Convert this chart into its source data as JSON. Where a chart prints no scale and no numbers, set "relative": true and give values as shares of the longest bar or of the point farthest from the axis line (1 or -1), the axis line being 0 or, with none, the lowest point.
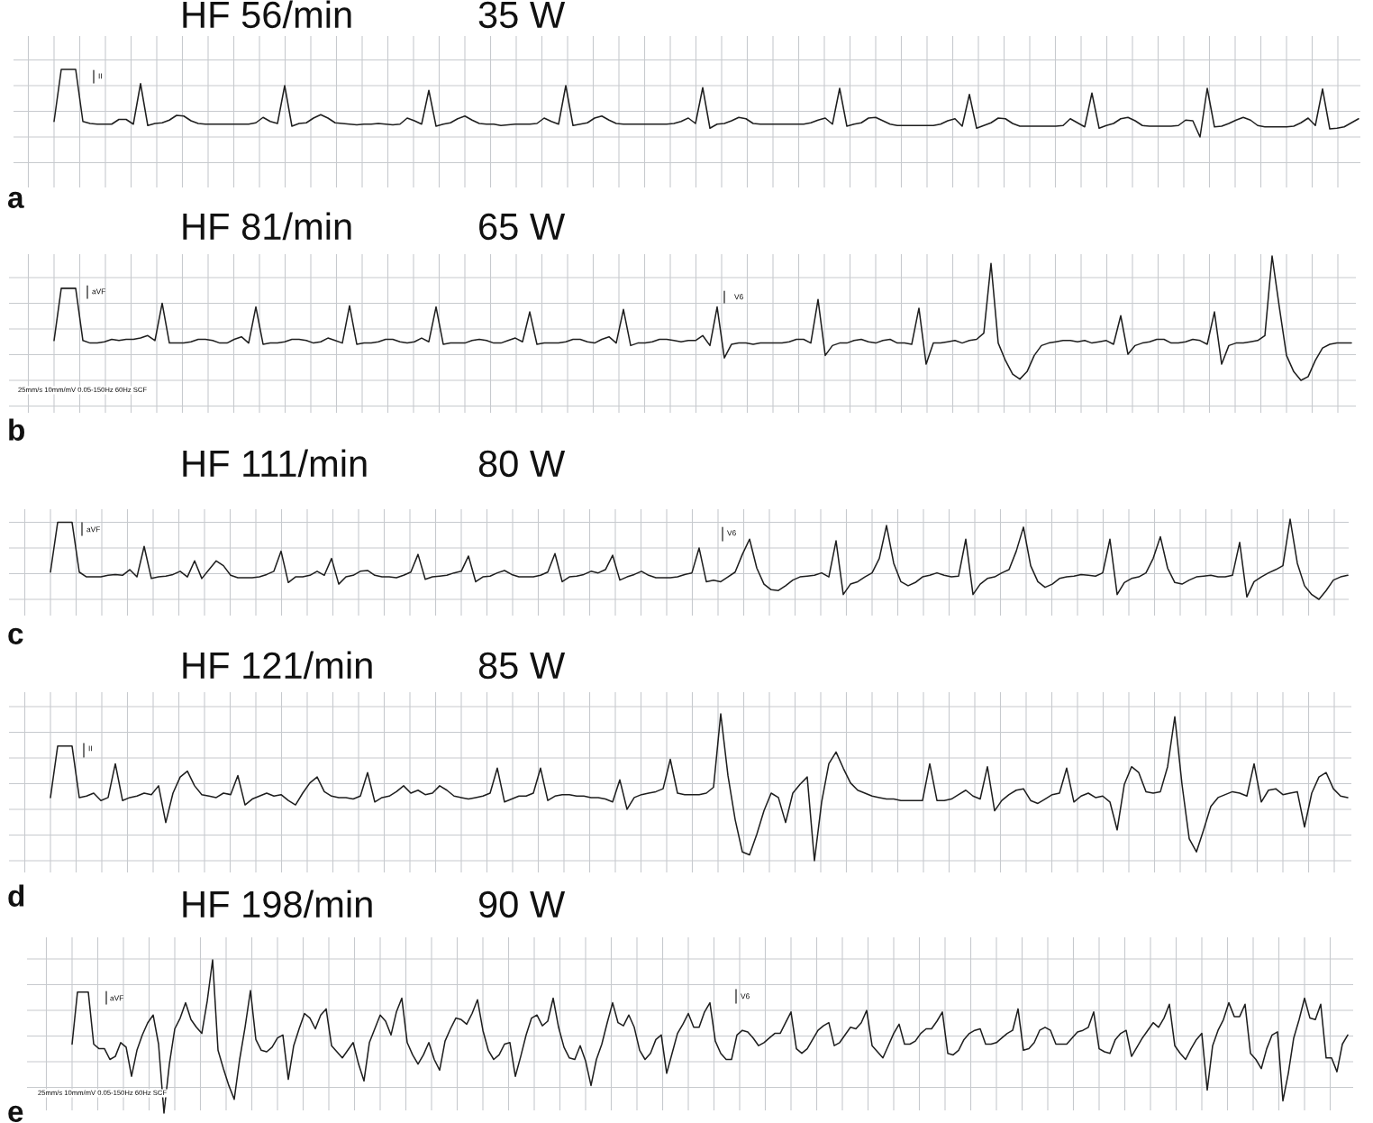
{
  "chart_data": [
    {
      "type": "line",
      "title": "HF 56/min",
      "subtitle": "35 W",
      "relative": true,
      "grid": true,
      "tick_labels": false,
      "annotations": [
        "a",
        "II"
      ],
      "categories": [
        null,
        null,
        null,
        null,
        null,
        null,
        null,
        null,
        null,
        null,
        null,
        null,
        null,
        null,
        null,
        null,
        null,
        null,
        null,
        null,
        null,
        null,
        null,
        null,
        null,
        null,
        null,
        null,
        null,
        null,
        null,
        null,
        null,
        null,
        null,
        null,
        null,
        null,
        null,
        null,
        null,
        null,
        null,
        null,
        null,
        null,
        null,
        null,
        null,
        null,
        null,
        null,
        null,
        null,
        null,
        null,
        null,
        null,
        null,
        null,
        null,
        null,
        null,
        null,
        null,
        null,
        null,
        null,
        null,
        null,
        null,
        null,
        null,
        null,
        null,
        null,
        null,
        null,
        null,
        null,
        null,
        null,
        null,
        null,
        null,
        null,
        null,
        null,
        null,
        null,
        null,
        null,
        null,
        null,
        null,
        null,
        null,
        null,
        null,
        null,
        null,
        null,
        null,
        null,
        null,
        null,
        null,
        null,
        null,
        null,
        null,
        null,
        null,
        null,
        null,
        null,
        null,
        null,
        null,
        null,
        null,
        null,
        null,
        null,
        null,
        null,
        null,
        null,
        null,
        null,
        null,
        null,
        null,
        null,
        null,
        null,
        null,
        null,
        null,
        null,
        null,
        null,
        null,
        null,
        null,
        null,
        null,
        null,
        null,
        null,
        null,
        null,
        null,
        null,
        null,
        null,
        null,
        null,
        null,
        null,
        null,
        null,
        null,
        null,
        null,
        null,
        null,
        null,
        null,
        null,
        null,
        null,
        null,
        null,
        null,
        null,
        null,
        null,
        null,
        null,
        null,
        null
      ],
      "series": [
        {
          "color": "#1e1e1e",
          "values": [
            0.23,
            1,
            1,
            1,
            0.23,
            0.2,
            0.19,
            0.19,
            0.19,
            0.26,
            0.26,
            0.19,
            0.79,
            0.17,
            0.2,
            0.21,
            0.25,
            0.32,
            0.31,
            0.24,
            0.2,
            0.19,
            0.19,
            0.19,
            0.19,
            0.19,
            0.19,
            0.19,
            0.21,
            0.29,
            0.23,
            0.2,
            0.76,
            0.16,
            0.2,
            0.21,
            0.28,
            0.33,
            0.28,
            0.21,
            0.2,
            0.19,
            0.18,
            0.19,
            0.19,
            0.2,
            0.19,
            0.18,
            0.19,
            0.28,
            0.24,
            0.19,
            0.69,
            0.16,
            0.19,
            0.21,
            0.27,
            0.31,
            0.25,
            0.2,
            0.19,
            0.19,
            0.17,
            0.18,
            0.19,
            0.19,
            0.19,
            0.2,
            0.28,
            0.23,
            0.19,
            0.76,
            0.17,
            0.19,
            0.21,
            0.28,
            0.31,
            0.25,
            0.2,
            0.19,
            0.19,
            0.19,
            0.19,
            0.19,
            0.19,
            0.19,
            0.2,
            0.23,
            0.28,
            0.2,
            0.73,
            0.13,
            0.19,
            0.2,
            0.24,
            0.29,
            0.27,
            0.2,
            0.19,
            0.19,
            0.19,
            0.19,
            0.19,
            0.19,
            0.19,
            0.21,
            0.25,
            0.28,
            0.19,
            0.72,
            0.16,
            0.19,
            0.21,
            0.28,
            0.29,
            0.24,
            0.19,
            0.17,
            0.17,
            0.17,
            0.17,
            0.17,
            0.17,
            0.19,
            0.24,
            0.27,
            0.16,
            0.63,
            0.13,
            0.17,
            0.21,
            0.28,
            0.27,
            0.2,
            0.16,
            0.16,
            0.16,
            0.16,
            0.16,
            0.16,
            0.17,
            0.27,
            0.21,
            0.15,
            0.65,
            0.13,
            0.17,
            0.2,
            0.27,
            0.29,
            0.24,
            0.17,
            0.16,
            0.16,
            0.16,
            0.16,
            0.17,
            0.25,
            0.24,
            0.0,
            0.72,
            0.15,
            0.16,
            0.2,
            0.25,
            0.29,
            0.25,
            0.17,
            0.15,
            0.15,
            0.15,
            0.15,
            0.16,
            0.21,
            0.28,
            0.17,
            0.71,
            0.12,
            0.13,
            0.15,
            0.21,
            0.27
          ]
        }
      ]
    },
    {
      "type": "line",
      "title": "HF 81/min",
      "subtitle": "65 W",
      "relative": true,
      "grid": true,
      "tick_labels": false,
      "annotations": [
        "b",
        "aVF",
        "V6",
        "25mm/s 10mm/mV 0.05-150Hz 60Hz SCF"
      ],
      "categories": [
        null,
        null,
        null,
        null,
        null,
        null,
        null,
        null,
        null,
        null,
        null,
        null,
        null,
        null,
        null,
        null,
        null,
        null,
        null,
        null,
        null,
        null,
        null,
        null,
        null,
        null,
        null,
        null,
        null,
        null,
        null,
        null,
        null,
        null,
        null,
        null,
        null,
        null,
        null,
        null,
        null,
        null,
        null,
        null,
        null,
        null,
        null,
        null,
        null,
        null,
        null,
        null,
        null,
        null,
        null,
        null,
        null,
        null,
        null,
        null,
        null,
        null,
        null,
        null,
        null,
        null,
        null,
        null,
        null,
        null,
        null,
        null,
        null,
        null,
        null,
        null,
        null,
        null,
        null,
        null,
        null,
        null,
        null,
        null,
        null,
        null,
        null,
        null,
        null,
        null,
        null,
        null,
        null,
        null,
        null,
        null,
        null,
        null,
        null,
        null,
        null,
        null,
        null,
        null,
        null,
        null,
        null,
        null,
        null,
        null,
        null,
        null,
        null,
        null,
        null,
        null,
        null,
        null,
        null,
        null,
        null,
        null,
        null,
        null,
        null,
        null,
        null,
        null,
        null,
        null,
        null,
        null,
        null,
        null,
        null,
        null,
        null,
        null,
        null,
        null,
        null,
        null,
        null,
        null,
        null,
        null,
        null,
        null,
        null,
        null,
        null,
        null,
        null,
        null,
        null,
        null,
        null,
        null,
        null,
        null,
        null,
        null,
        null,
        null,
        null,
        null,
        null,
        null,
        null,
        null,
        null,
        null,
        null,
        null,
        null,
        null,
        null,
        null,
        null,
        null,
        null
      ],
      "series": [
        {
          "color": "#1e1e1e",
          "values": [
            0.32,
            0.74,
            0.74,
            0.74,
            0.32,
            0.3,
            0.3,
            0.31,
            0.33,
            0.32,
            0.33,
            0.33,
            0.34,
            0.36,
            0.32,
            0.62,
            0.3,
            0.3,
            0.3,
            0.31,
            0.33,
            0.33,
            0.32,
            0.3,
            0.3,
            0.33,
            0.35,
            0.3,
            0.59,
            0.29,
            0.3,
            0.3,
            0.31,
            0.33,
            0.33,
            0.32,
            0.3,
            0.31,
            0.34,
            0.32,
            0.3,
            0.6,
            0.29,
            0.3,
            0.3,
            0.31,
            0.33,
            0.33,
            0.31,
            0.3,
            0.31,
            0.34,
            0.31,
            0.59,
            0.29,
            0.3,
            0.3,
            0.3,
            0.32,
            0.33,
            0.32,
            0.3,
            0.3,
            0.32,
            0.34,
            0.31,
            0.55,
            0.29,
            0.3,
            0.3,
            0.3,
            0.31,
            0.33,
            0.33,
            0.31,
            0.3,
            0.33,
            0.35,
            0.3,
            0.57,
            0.28,
            0.3,
            0.3,
            0.31,
            0.33,
            0.33,
            0.32,
            0.31,
            0.32,
            0.32,
            0.36,
            0.28,
            0.59,
            0.18,
            0.29,
            0.3,
            0.3,
            0.29,
            0.3,
            0.3,
            0.3,
            0.3,
            0.31,
            0.33,
            0.33,
            0.3,
            0.65,
            0.2,
            0.28,
            0.3,
            0.3,
            0.32,
            0.33,
            0.31,
            0.3,
            0.32,
            0.33,
            0.3,
            0.3,
            0.29,
            0.58,
            0.13,
            0.3,
            0.3,
            0.31,
            0.32,
            0.3,
            0.32,
            0.33,
            0.38,
            0.94,
            0.3,
            0.16,
            0.05,
            0.01,
            0.07,
            0.2,
            0.28,
            0.3,
            0.31,
            0.32,
            0.32,
            0.31,
            0.32,
            0.3,
            0.31,
            0.32,
            0.29,
            0.52,
            0.21,
            0.28,
            0.3,
            0.31,
            0.33,
            0.33,
            0.3,
            0.3,
            0.31,
            0.33,
            0.32,
            0.29,
            0.55,
            0.13,
            0.28,
            0.3,
            0.3,
            0.31,
            0.32,
            0.36,
            1.0,
            0.59,
            0.2,
            0.07,
            0.0,
            0.03,
            0.16,
            0.26,
            0.29,
            0.3,
            0.3,
            0.3
          ]
        }
      ]
    },
    {
      "type": "line",
      "title": "HF 111/min",
      "subtitle": "80 W",
      "relative": true,
      "grid": true,
      "tick_labels": false,
      "annotations": [
        "c",
        "aVF",
        "V6"
      ],
      "categories": [
        null,
        null,
        null,
        null,
        null,
        null,
        null,
        null,
        null,
        null,
        null,
        null,
        null,
        null,
        null,
        null,
        null,
        null,
        null,
        null,
        null,
        null,
        null,
        null,
        null,
        null,
        null,
        null,
        null,
        null,
        null,
        null,
        null,
        null,
        null,
        null,
        null,
        null,
        null,
        null,
        null,
        null,
        null,
        null,
        null,
        null,
        null,
        null,
        null,
        null,
        null,
        null,
        null,
        null,
        null,
        null,
        null,
        null,
        null,
        null,
        null,
        null,
        null,
        null,
        null,
        null,
        null,
        null,
        null,
        null,
        null,
        null,
        null,
        null,
        null,
        null,
        null,
        null,
        null,
        null,
        null,
        null,
        null,
        null,
        null,
        null,
        null,
        null,
        null,
        null,
        null,
        null,
        null,
        null,
        null,
        null,
        null,
        null,
        null,
        null,
        null,
        null,
        null,
        null,
        null,
        null,
        null,
        null,
        null,
        null,
        null,
        null,
        null,
        null,
        null,
        null,
        null,
        null,
        null,
        null,
        null,
        null,
        null,
        null,
        null,
        null,
        null,
        null,
        null,
        null,
        null,
        null,
        null,
        null,
        null,
        null,
        null,
        null,
        null,
        null,
        null,
        null,
        null,
        null,
        null,
        null,
        null,
        null,
        null,
        null,
        null,
        null,
        null,
        null,
        null,
        null,
        null,
        null,
        null,
        null,
        null,
        null,
        null,
        null,
        null,
        null,
        null,
        null,
        null,
        null,
        null,
        null,
        null,
        null,
        null,
        null,
        null,
        null,
        null,
        null,
        null
      ],
      "series": [
        {
          "color": "#1e1e1e",
          "values": [
            0.34,
            0.96,
            0.96,
            0.96,
            0.34,
            0.28,
            0.28,
            0.28,
            0.3,
            0.31,
            0.3,
            0.37,
            0.28,
            0.66,
            0.26,
            0.28,
            0.29,
            0.31,
            0.35,
            0.28,
            0.48,
            0.26,
            0.37,
            0.48,
            0.42,
            0.3,
            0.27,
            0.27,
            0.27,
            0.28,
            0.31,
            0.35,
            0.6,
            0.21,
            0.28,
            0.28,
            0.3,
            0.35,
            0.3,
            0.51,
            0.19,
            0.28,
            0.3,
            0.35,
            0.36,
            0.3,
            0.28,
            0.28,
            0.27,
            0.3,
            0.34,
            0.56,
            0.25,
            0.28,
            0.29,
            0.3,
            0.33,
            0.35,
            0.54,
            0.22,
            0.28,
            0.29,
            0.33,
            0.36,
            0.31,
            0.28,
            0.28,
            0.28,
            0.3,
            0.34,
            0.57,
            0.22,
            0.28,
            0.29,
            0.31,
            0.35,
            0.33,
            0.37,
            0.55,
            0.24,
            0.28,
            0.31,
            0.35,
            0.3,
            0.27,
            0.27,
            0.27,
            0.28,
            0.31,
            0.33,
            0.64,
            0.22,
            0.24,
            0.22,
            0.28,
            0.34,
            0.56,
            0.75,
            0.39,
            0.19,
            0.12,
            0.11,
            0.17,
            0.24,
            0.28,
            0.29,
            0.3,
            0.33,
            0.28,
            0.73,
            0.06,
            0.19,
            0.22,
            0.28,
            0.33,
            0.51,
            0.92,
            0.45,
            0.22,
            0.17,
            0.21,
            0.28,
            0.3,
            0.33,
            0.3,
            0.28,
            0.29,
            0.75,
            0.06,
            0.19,
            0.26,
            0.28,
            0.33,
            0.37,
            0.6,
            0.9,
            0.42,
            0.22,
            0.15,
            0.19,
            0.26,
            0.28,
            0.29,
            0.31,
            0.3,
            0.29,
            0.33,
            0.75,
            0.06,
            0.21,
            0.26,
            0.28,
            0.33,
            0.51,
            0.78,
            0.39,
            0.21,
            0.19,
            0.24,
            0.28,
            0.29,
            0.3,
            0.28,
            0.28,
            0.3,
            0.71,
            0.03,
            0.22,
            0.28,
            0.33,
            0.37,
            0.42,
            1.0,
            0.45,
            0.17,
            0.06,
            0.0,
            0.11,
            0.24,
            0.28,
            0.3
          ]
        }
      ]
    },
    {
      "type": "line",
      "title": "HF 121/min",
      "subtitle": "85 W",
      "relative": true,
      "grid": true,
      "tick_labels": false,
      "annotations": [
        "d",
        "II"
      ],
      "categories": [
        null,
        null,
        null,
        null,
        null,
        null,
        null,
        null,
        null,
        null,
        null,
        null,
        null,
        null,
        null,
        null,
        null,
        null,
        null,
        null,
        null,
        null,
        null,
        null,
        null,
        null,
        null,
        null,
        null,
        null,
        null,
        null,
        null,
        null,
        null,
        null,
        null,
        null,
        null,
        null,
        null,
        null,
        null,
        null,
        null,
        null,
        null,
        null,
        null,
        null,
        null,
        null,
        null,
        null,
        null,
        null,
        null,
        null,
        null,
        null,
        null,
        null,
        null,
        null,
        null,
        null,
        null,
        null,
        null,
        null,
        null,
        null,
        null,
        null,
        null,
        null,
        null,
        null,
        null,
        null,
        null,
        null,
        null,
        null,
        null,
        null,
        null,
        null,
        null,
        null,
        null,
        null,
        null,
        null,
        null,
        null,
        null,
        null,
        null,
        null,
        null,
        null,
        null,
        null,
        null,
        null,
        null,
        null,
        null,
        null,
        null,
        null,
        null,
        null,
        null,
        null,
        null,
        null,
        null,
        null,
        null,
        null,
        null,
        null,
        null,
        null,
        null,
        null,
        null,
        null,
        null,
        null,
        null,
        null,
        null,
        null,
        null,
        null,
        null,
        null,
        null,
        null,
        null,
        null,
        null,
        null,
        null,
        null,
        null,
        null,
        null,
        null,
        null,
        null,
        null,
        null,
        null,
        null,
        null,
        null,
        null,
        null,
        null,
        null,
        null,
        null,
        null,
        null,
        null,
        null,
        null,
        null,
        null,
        null,
        null,
        null,
        null,
        null,
        null,
        null,
        null
      ],
      "series": [
        {
          "color": "#1e1e1e",
          "values": [
            0.43,
            0.78,
            0.78,
            0.78,
            0.43,
            0.44,
            0.46,
            0.41,
            0.43,
            0.66,
            0.41,
            0.43,
            0.44,
            0.46,
            0.45,
            0.51,
            0.26,
            0.46,
            0.57,
            0.61,
            0.51,
            0.45,
            0.44,
            0.43,
            0.46,
            0.45,
            0.58,
            0.38,
            0.42,
            0.44,
            0.46,
            0.44,
            0.45,
            0.41,
            0.38,
            0.46,
            0.53,
            0.57,
            0.47,
            0.44,
            0.43,
            0.43,
            0.42,
            0.44,
            0.6,
            0.4,
            0.43,
            0.44,
            0.47,
            0.51,
            0.46,
            0.48,
            0.45,
            0.46,
            0.51,
            0.48,
            0.44,
            0.43,
            0.42,
            0.43,
            0.44,
            0.46,
            0.63,
            0.4,
            0.42,
            0.44,
            0.44,
            0.46,
            0.63,
            0.41,
            0.44,
            0.45,
            0.45,
            0.44,
            0.44,
            0.43,
            0.43,
            0.42,
            0.4,
            0.55,
            0.35,
            0.43,
            0.45,
            0.46,
            0.47,
            0.49,
            0.69,
            0.46,
            0.45,
            0.45,
            0.45,
            0.46,
            0.5,
            1.0,
            0.58,
            0.28,
            0.06,
            0.04,
            0.18,
            0.34,
            0.46,
            0.43,
            0.26,
            0.46,
            0.52,
            0.57,
            0.0,
            0.4,
            0.66,
            0.74,
            0.63,
            0.53,
            0.48,
            0.46,
            0.44,
            0.43,
            0.42,
            0.42,
            0.41,
            0.41,
            0.41,
            0.41,
            0.66,
            0.41,
            0.41,
            0.42,
            0.45,
            0.48,
            0.44,
            0.42,
            0.64,
            0.34,
            0.41,
            0.45,
            0.48,
            0.49,
            0.41,
            0.39,
            0.42,
            0.45,
            0.46,
            0.63,
            0.4,
            0.44,
            0.46,
            0.43,
            0.44,
            0.4,
            0.21,
            0.52,
            0.64,
            0.6,
            0.47,
            0.46,
            0.47,
            0.64,
            0.98,
            0.52,
            0.15,
            0.06,
            0.21,
            0.37,
            0.43,
            0.45,
            0.47,
            0.46,
            0.44,
            0.66,
            0.4,
            0.48,
            0.49,
            0.45,
            0.46,
            0.47,
            0.23,
            0.46,
            0.57,
            0.6,
            0.49,
            0.44,
            0.43
          ]
        }
      ]
    },
    {
      "type": "line",
      "title": "HF 198/min",
      "subtitle": "90 W",
      "relative": true,
      "grid": true,
      "tick_labels": false,
      "annotations": [
        "e",
        "aVF",
        "V6",
        "25mm/s 10mm/mV 0.05-150Hz 60Hz SCF"
      ],
      "categories": [
        null,
        null,
        null,
        null,
        null,
        null,
        null,
        null,
        null,
        null,
        null,
        null,
        null,
        null,
        null,
        null,
        null,
        null,
        null,
        null,
        null,
        null,
        null,
        null,
        null,
        null,
        null,
        null,
        null,
        null,
        null,
        null,
        null,
        null,
        null,
        null,
        null,
        null,
        null,
        null,
        null,
        null,
        null,
        null,
        null,
        null,
        null,
        null,
        null,
        null,
        null,
        null,
        null,
        null,
        null,
        null,
        null,
        null,
        null,
        null,
        null,
        null,
        null,
        null,
        null,
        null,
        null,
        null,
        null,
        null,
        null,
        null,
        null,
        null,
        null,
        null,
        null,
        null,
        null,
        null,
        null,
        null,
        null,
        null,
        null,
        null,
        null,
        null,
        null,
        null,
        null,
        null,
        null,
        null,
        null,
        null,
        null,
        null,
        null,
        null,
        null,
        null,
        null,
        null,
        null,
        null,
        null,
        null,
        null,
        null,
        null,
        null,
        null,
        null,
        null,
        null,
        null,
        null,
        null,
        null,
        null,
        null,
        null,
        null,
        null,
        null,
        null,
        null,
        null,
        null,
        null,
        null,
        null,
        null,
        null,
        null,
        null,
        null,
        null,
        null,
        null,
        null,
        null,
        null,
        null,
        null,
        null,
        null,
        null,
        null,
        null,
        null,
        null,
        null,
        null,
        null,
        null,
        null,
        null,
        null,
        null,
        null,
        null,
        null,
        null,
        null,
        null,
        null,
        null,
        null,
        null,
        null,
        null,
        null,
        null,
        null,
        null,
        null,
        null,
        null,
        null,
        null,
        null,
        null,
        null,
        null,
        null,
        null,
        null,
        null,
        null,
        null,
        null,
        null,
        null,
        null,
        null,
        null,
        null,
        null,
        null,
        null,
        null,
        null,
        null,
        null,
        null,
        null,
        null,
        null,
        null,
        null,
        null,
        null,
        null,
        null,
        null,
        null,
        null,
        null,
        null,
        null,
        null,
        null,
        null,
        null,
        null,
        null,
        null,
        null,
        null,
        null,
        null,
        null,
        null,
        null,
        null
      ],
      "series": [
        {
          "color": "#1e1e1e",
          "values": [
            0.45,
            0.79,
            0.79,
            0.79,
            0.45,
            0.42,
            0.42,
            0.35,
            0.37,
            0.46,
            0.43,
            0.24,
            0.41,
            0.51,
            0.59,
            0.64,
            0.45,
            0.0,
            0.32,
            0.55,
            0.62,
            0.72,
            0.61,
            0.56,
            0.52,
            0.73,
            1.0,
            0.41,
            0.29,
            0.18,
            0.09,
            0.35,
            0.56,
            0.8,
            0.48,
            0.41,
            0.4,
            0.43,
            0.49,
            0.51,
            0.22,
            0.44,
            0.55,
            0.65,
            0.62,
            0.55,
            0.64,
            0.68,
            0.44,
            0.4,
            0.36,
            0.41,
            0.46,
            0.32,
            0.21,
            0.46,
            0.55,
            0.64,
            0.6,
            0.51,
            0.66,
            0.75,
            0.46,
            0.38,
            0.32,
            0.38,
            0.46,
            0.35,
            0.28,
            0.47,
            0.55,
            0.62,
            0.61,
            0.58,
            0.65,
            0.74,
            0.54,
            0.41,
            0.35,
            0.38,
            0.45,
            0.46,
            0.24,
            0.37,
            0.51,
            0.62,
            0.64,
            0.57,
            0.6,
            0.75,
            0.56,
            0.43,
            0.36,
            0.35,
            0.44,
            0.34,
            0.18,
            0.35,
            0.45,
            0.59,
            0.72,
            0.59,
            0.57,
            0.64,
            0.56,
            0.41,
            0.35,
            0.39,
            0.48,
            0.51,
            0.26,
            0.39,
            0.52,
            0.58,
            0.65,
            0.56,
            0.56,
            0.66,
            0.72,
            0.47,
            0.39,
            0.35,
            0.35,
            0.51,
            0.54,
            0.53,
            0.49,
            0.44,
            0.46,
            0.49,
            0.52,
            0.52,
            0.59,
            0.66,
            0.42,
            0.39,
            0.42,
            0.48,
            0.54,
            0.57,
            0.59,
            0.44,
            0.46,
            0.51,
            0.56,
            0.55,
            0.59,
            0.67,
            0.44,
            0.4,
            0.36,
            0.44,
            0.52,
            0.58,
            0.45,
            0.45,
            0.47,
            0.52,
            0.55,
            0.55,
            0.6,
            0.66,
            0.39,
            0.38,
            0.41,
            0.48,
            0.52,
            0.54,
            0.55,
            0.45,
            0.45,
            0.46,
            0.49,
            0.52,
            0.54,
            0.68,
            0.41,
            0.42,
            0.46,
            0.54,
            0.56,
            0.54,
            0.45,
            0.45,
            0.45,
            0.49,
            0.53,
            0.54,
            0.56,
            0.66,
            0.42,
            0.4,
            0.39,
            0.48,
            0.52,
            0.54,
            0.37,
            0.43,
            0.49,
            0.54,
            0.59,
            0.56,
            0.62,
            0.71,
            0.44,
            0.39,
            0.35,
            0.42,
            0.48,
            0.52,
            0.15,
            0.44,
            0.54,
            0.61,
            0.72,
            0.63,
            0.63,
            0.71,
            0.39,
            0.35,
            0.29,
            0.42,
            0.51,
            0.53,
            0.08,
            0.26,
            0.49,
            0.61,
            0.75,
            0.62,
            0.61,
            0.71,
            0.36,
            0.36,
            0.27,
            0.45,
            0.51
          ]
        }
      ]
    }
  ]
}
